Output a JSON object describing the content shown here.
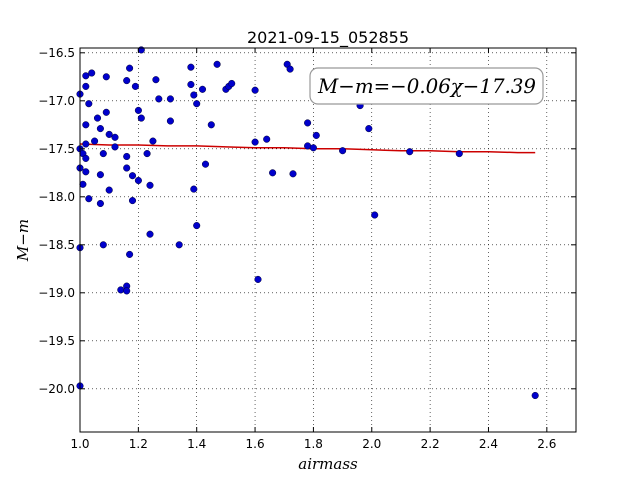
{
  "chart_data": {
    "type": "scatter",
    "title": "2021-09-15_052855",
    "xlabel": "airmass",
    "ylabel": "M−m",
    "xlim": [
      1.0,
      2.7
    ],
    "ylim": [
      -16.45,
      -20.45
    ],
    "y_inverted": true,
    "grid": true,
    "x_ticks": [
      "1.0",
      "1.2",
      "1.4",
      "1.6",
      "1.8",
      "2.0",
      "2.2",
      "2.4",
      "2.6"
    ],
    "y_ticks": [
      "−16.5",
      "−17.0",
      "−17.5",
      "−18.0",
      "−18.5",
      "−19.0",
      "−19.5",
      "−20.0"
    ],
    "annotation": "M−m=−0.06χ−17.39",
    "series": [
      {
        "color": "#0000cc",
        "points": [
          [
            1.0,
            -16.93
          ],
          [
            1.0,
            -17.5
          ],
          [
            1.0,
            -17.7
          ],
          [
            1.0,
            -18.53
          ],
          [
            1.0,
            -19.97
          ],
          [
            1.01,
            -17.55
          ],
          [
            1.01,
            -17.87
          ],
          [
            1.02,
            -16.85
          ],
          [
            1.02,
            -16.74
          ],
          [
            1.02,
            -17.25
          ],
          [
            1.02,
            -17.45
          ],
          [
            1.02,
            -17.6
          ],
          [
            1.02,
            -17.74
          ],
          [
            1.03,
            -17.03
          ],
          [
            1.03,
            -18.02
          ],
          [
            1.04,
            -16.71
          ],
          [
            1.05,
            -17.42
          ],
          [
            1.06,
            -17.18
          ],
          [
            1.07,
            -17.29
          ],
          [
            1.07,
            -17.77
          ],
          [
            1.07,
            -18.07
          ],
          [
            1.08,
            -17.55
          ],
          [
            1.08,
            -18.5
          ],
          [
            1.09,
            -16.75
          ],
          [
            1.09,
            -17.12
          ],
          [
            1.1,
            -17.35
          ],
          [
            1.1,
            -17.93
          ],
          [
            1.12,
            -17.48
          ],
          [
            1.12,
            -17.38
          ],
          [
            1.14,
            -18.97
          ],
          [
            1.16,
            -18.93
          ],
          [
            1.16,
            -18.98
          ],
          [
            1.16,
            -17.58
          ],
          [
            1.16,
            -17.7
          ],
          [
            1.16,
            -16.79
          ],
          [
            1.17,
            -16.66
          ],
          [
            1.17,
            -18.6
          ],
          [
            1.18,
            -17.78
          ],
          [
            1.18,
            -18.04
          ],
          [
            1.19,
            -16.85
          ],
          [
            1.2,
            -17.1
          ],
          [
            1.2,
            -17.83
          ],
          [
            1.21,
            -16.47
          ],
          [
            1.21,
            -17.18
          ],
          [
            1.23,
            -17.55
          ],
          [
            1.24,
            -17.88
          ],
          [
            1.24,
            -18.39
          ],
          [
            1.25,
            -17.42
          ],
          [
            1.26,
            -16.78
          ],
          [
            1.27,
            -16.98
          ],
          [
            1.31,
            -16.98
          ],
          [
            1.31,
            -17.21
          ],
          [
            1.34,
            -18.5
          ],
          [
            1.38,
            -16.65
          ],
          [
            1.38,
            -16.83
          ],
          [
            1.39,
            -17.92
          ],
          [
            1.39,
            -16.94
          ],
          [
            1.4,
            -17.03
          ],
          [
            1.4,
            -18.3
          ],
          [
            1.42,
            -16.88
          ],
          [
            1.43,
            -17.66
          ],
          [
            1.45,
            -17.25
          ],
          [
            1.47,
            -16.62
          ],
          [
            1.5,
            -16.88
          ],
          [
            1.51,
            -16.85
          ],
          [
            1.52,
            -16.82
          ],
          [
            1.6,
            -17.43
          ],
          [
            1.6,
            -16.89
          ],
          [
            1.61,
            -18.86
          ],
          [
            1.64,
            -17.4
          ],
          [
            1.66,
            -17.75
          ],
          [
            1.71,
            -16.62
          ],
          [
            1.72,
            -16.67
          ],
          [
            1.73,
            -17.76
          ],
          [
            1.78,
            -17.23
          ],
          [
            1.78,
            -17.47
          ],
          [
            1.8,
            -17.49
          ],
          [
            1.81,
            -17.36
          ],
          [
            1.9,
            -17.52
          ],
          [
            1.96,
            -17.05
          ],
          [
            1.99,
            -17.29
          ],
          [
            2.01,
            -18.19
          ],
          [
            2.13,
            -17.53
          ],
          [
            2.3,
            -17.55
          ],
          [
            2.56,
            -20.07
          ]
        ]
      }
    ],
    "fit_line": {
      "color": "#cc0000",
      "x": [
        1.0,
        1.1,
        1.2,
        1.3,
        1.4,
        1.5,
        1.6,
        1.7,
        1.8,
        1.9,
        2.0,
        2.1,
        2.2,
        2.3,
        2.4,
        2.5,
        2.56
      ],
      "y": [
        -17.45,
        -17.46,
        -17.46,
        -17.47,
        -17.47,
        -17.48,
        -17.49,
        -17.49,
        -17.5,
        -17.5,
        -17.51,
        -17.52,
        -17.52,
        -17.53,
        -17.53,
        -17.54,
        -17.54
      ]
    }
  }
}
